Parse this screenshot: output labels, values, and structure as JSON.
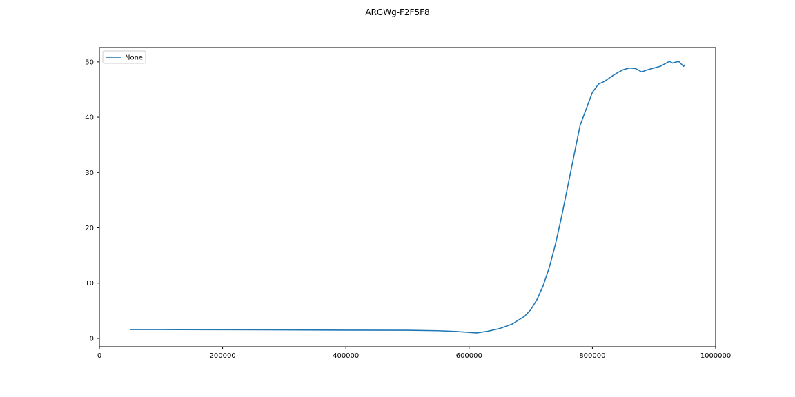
{
  "chart_data": {
    "type": "line",
    "title": "ARGWg-F2F5F8",
    "xlabel": "",
    "ylabel": "",
    "xlim": [
      0,
      1000000
    ],
    "ylim": [
      -1.5,
      52.6
    ],
    "x_ticks": [
      0,
      200000,
      400000,
      600000,
      800000,
      1000000
    ],
    "x_tick_labels": [
      "0",
      "200000",
      "400000",
      "600000",
      "800000",
      "1000000"
    ],
    "y_ticks": [
      0,
      10,
      20,
      30,
      40,
      50
    ],
    "y_tick_labels": [
      "0",
      "10",
      "20",
      "30",
      "40",
      "50"
    ],
    "grid": false,
    "legend_position": "top-left",
    "series": [
      {
        "name": "None",
        "color": "#1f77b4",
        "x": [
          50000,
          100000,
          200000,
          300000,
          400000,
          500000,
          550000,
          580000,
          600000,
          612000,
          630000,
          650000,
          670000,
          690000,
          700000,
          710000,
          720000,
          730000,
          740000,
          750000,
          760000,
          770000,
          780000,
          790000,
          800000,
          810000,
          820000,
          830000,
          840000,
          850000,
          860000,
          870000,
          880000,
          890000,
          900000,
          910000,
          920000,
          925000,
          930000,
          940000,
          948000,
          950000
        ],
        "y": [
          1.6,
          1.6,
          1.58,
          1.55,
          1.5,
          1.48,
          1.4,
          1.25,
          1.1,
          1.0,
          1.3,
          1.8,
          2.6,
          4.0,
          5.2,
          7.0,
          9.5,
          12.8,
          17.0,
          22.0,
          27.5,
          33.0,
          38.5,
          41.5,
          44.5,
          46.0,
          46.5,
          47.3,
          48.0,
          48.6,
          48.9,
          48.8,
          48.2,
          48.6,
          48.9,
          49.2,
          49.8,
          50.1,
          49.8,
          50.1,
          49.2,
          49.5
        ]
      }
    ]
  }
}
